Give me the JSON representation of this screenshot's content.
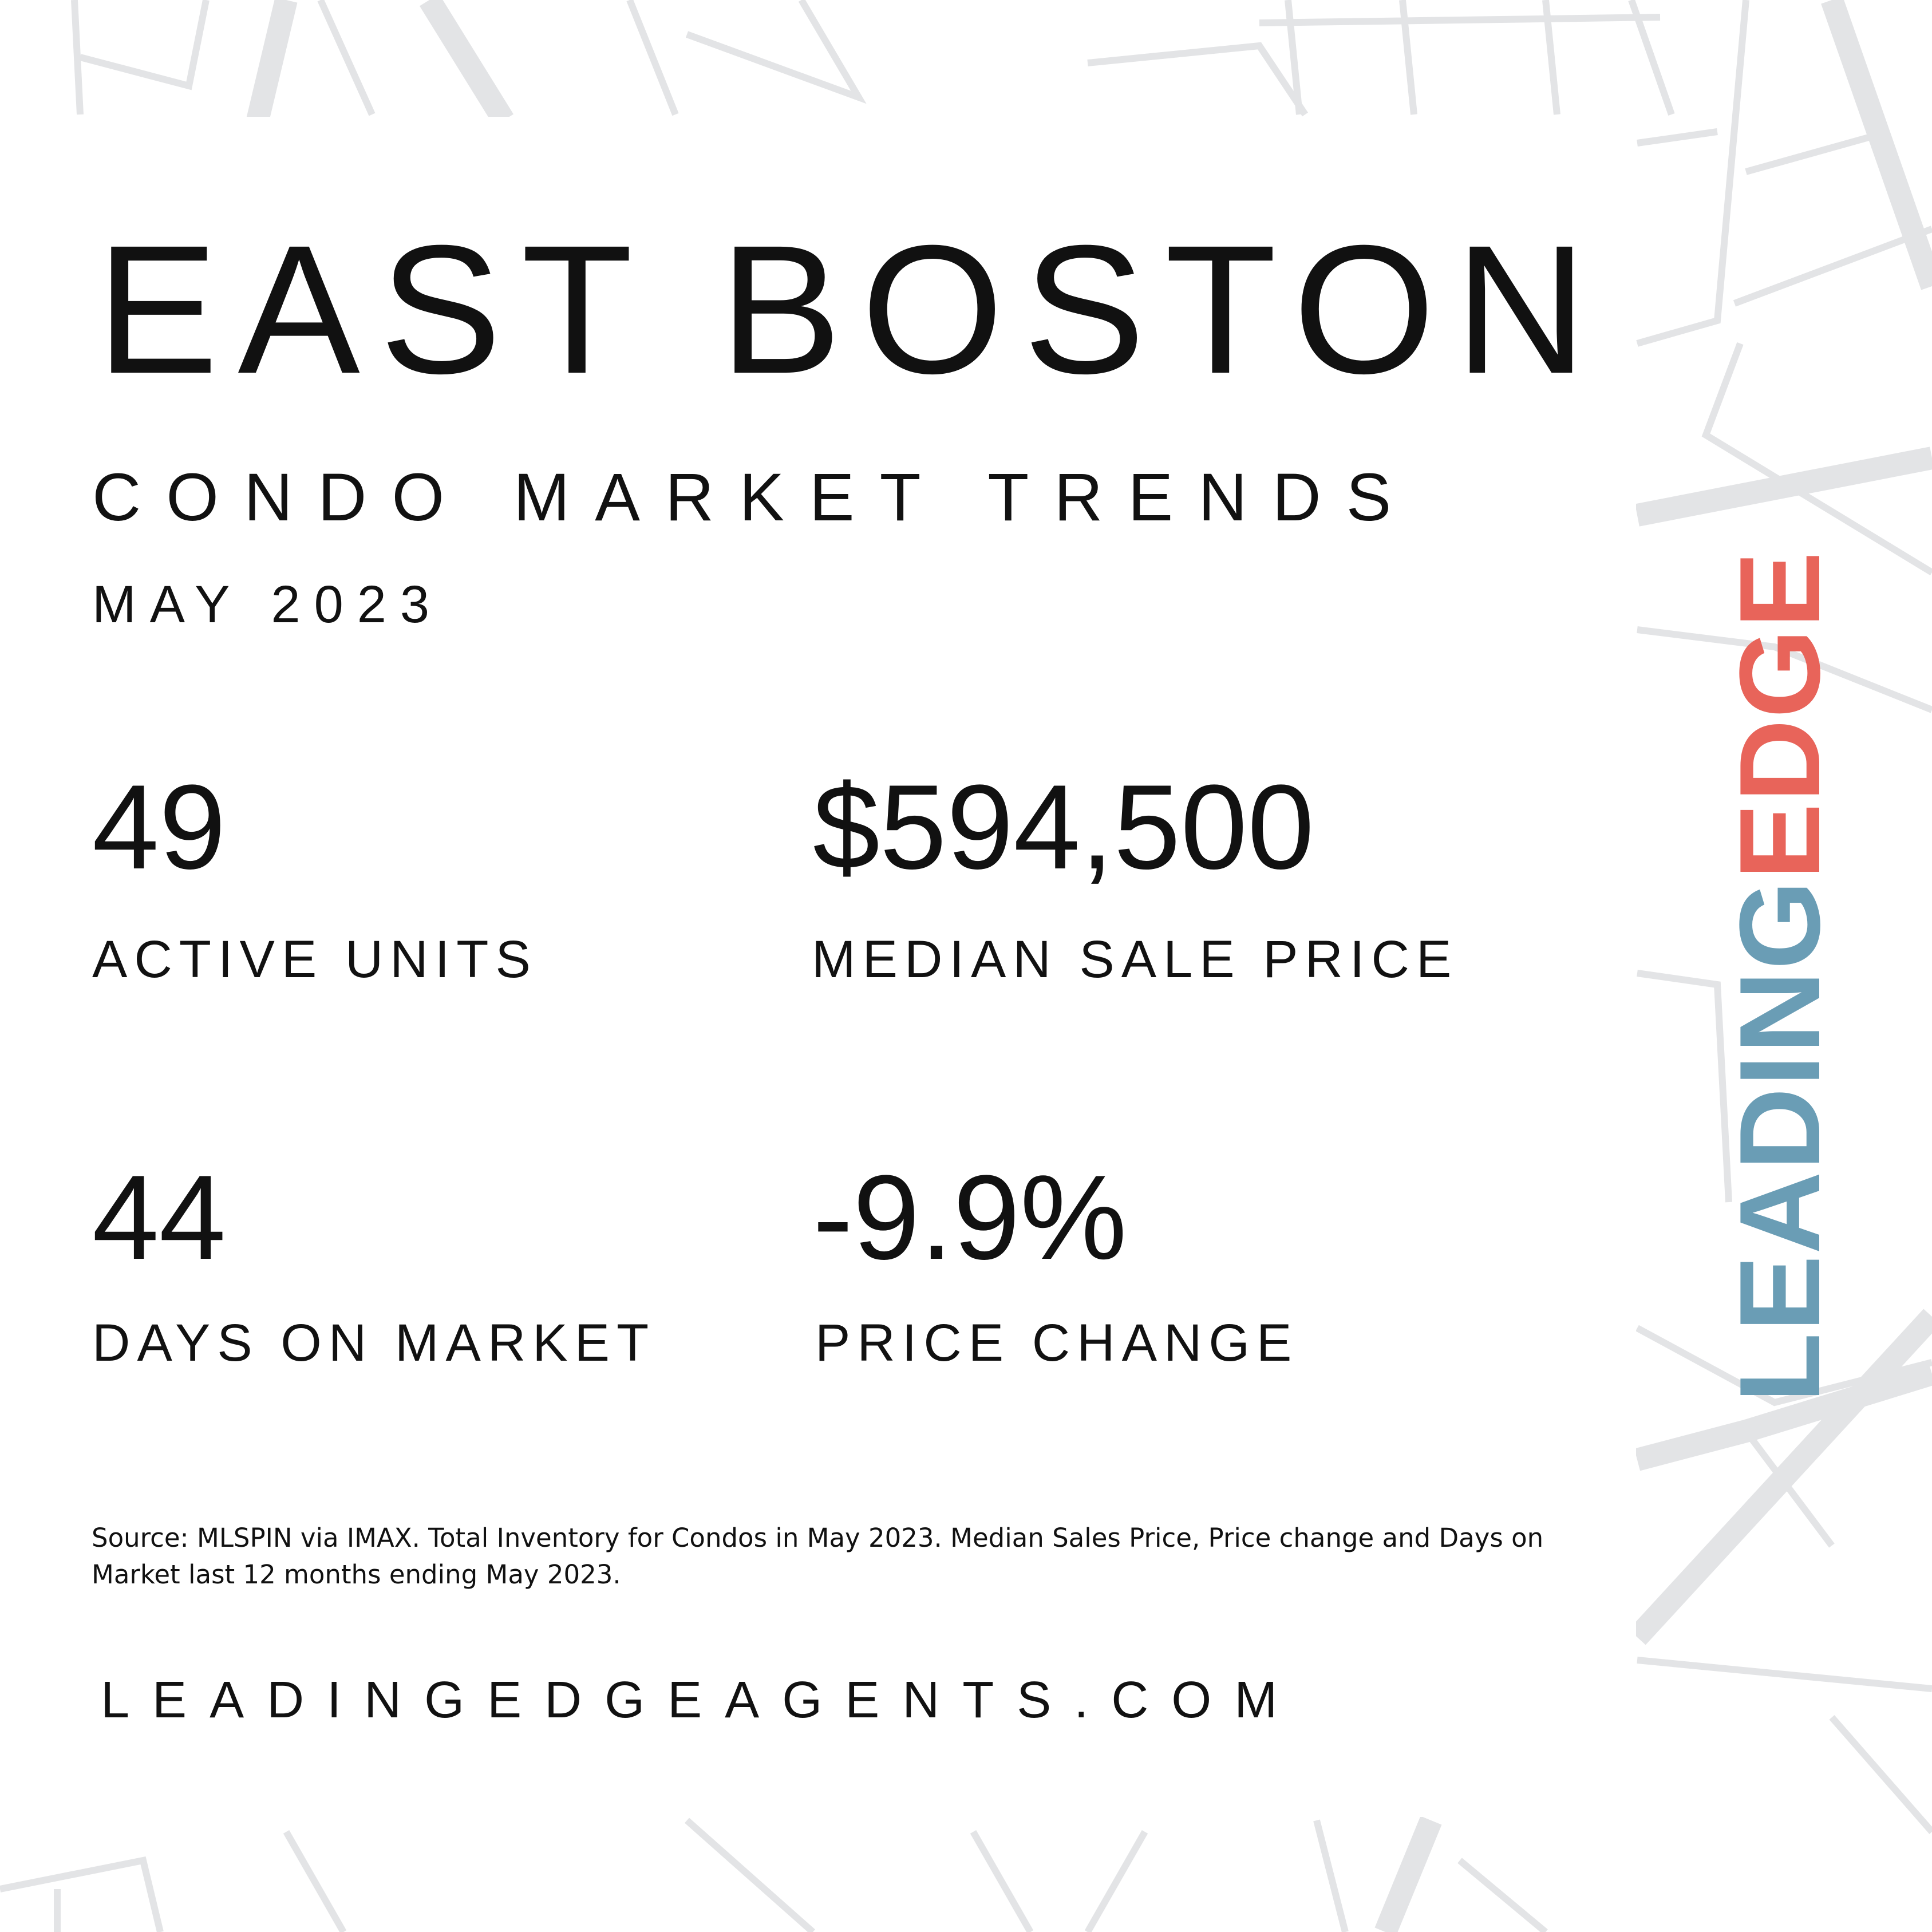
{
  "header": {
    "title": "EAST BOSTON",
    "subtitle": "CONDO MARKET TRENDS",
    "date": "MAY 2023"
  },
  "stats": [
    {
      "value": "49",
      "label": "ACTIVE UNITS"
    },
    {
      "value": "$594,500",
      "label": "MEDIAN SALE PRICE"
    },
    {
      "value": "44",
      "label": "DAYS ON MARKET"
    },
    {
      "value": "-9.9%",
      "label": "PRICE CHANGE"
    }
  ],
  "source": "Source: MLSPIN via IMAX. Total Inventory for Condos in May 2023. Median Sales Price, Price change and Days on Market last 12 months ending May 2023.",
  "website": "LEADINGEDGEAGENTS.COM",
  "logo": {
    "first": "LEADING",
    "second": "EDGE"
  }
}
